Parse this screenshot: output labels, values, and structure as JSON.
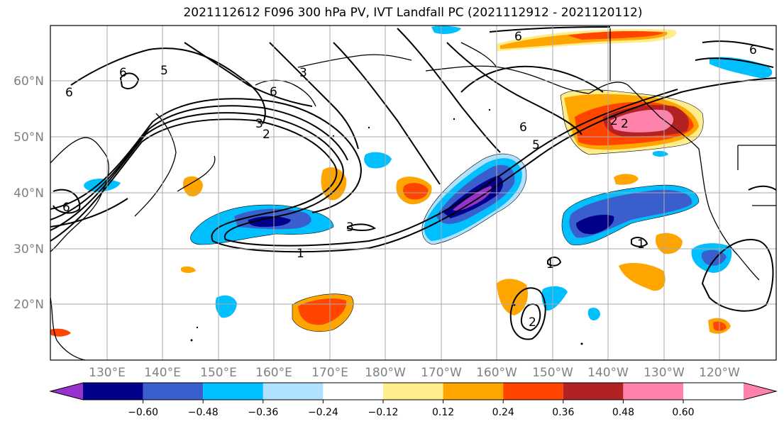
{
  "title": "2021112612 F096 300 hPa PV, IVT Landfall PC (2021112912 - 2021120112)",
  "lat_labels": [
    "60°N",
    "50°N",
    "40°N",
    "30°N",
    "20°N"
  ],
  "lon_labels": [
    "130°E",
    "140°E",
    "150°E",
    "160°E",
    "170°E",
    "180°W",
    "170°W",
    "160°W",
    "150°W",
    "140°W",
    "130°W",
    "120°W"
  ],
  "colorbar": {
    "colors": [
      "#9932cc",
      "#00008b",
      "#3a5fcd",
      "#00bfff",
      "#b0e2ff",
      "#ffffff",
      "#ffec8b",
      "#ffa500",
      "#ff4500",
      "#b22222",
      "#ff82ab"
    ],
    "tick_labels": [
      "−0.60",
      "−0.48",
      "−0.36",
      "−0.24",
      "−0.12",
      "0.12",
      "0.24",
      "0.36",
      "0.48",
      "0.60"
    ]
  },
  "contour_labels": [
    "6",
    "5",
    "6",
    "3",
    "2",
    "3",
    "6",
    "5",
    "3",
    "1",
    "6",
    "6",
    "6",
    "2",
    "2",
    "1",
    "1",
    "2",
    "6"
  ]
}
